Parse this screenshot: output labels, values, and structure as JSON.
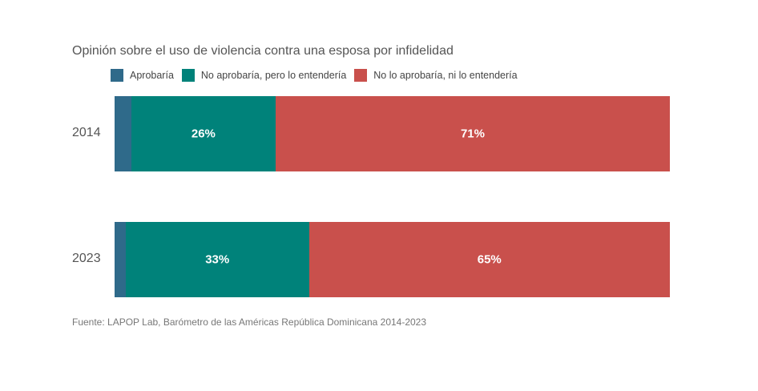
{
  "chart_data": {
    "type": "bar",
    "orientation": "horizontal",
    "stacked": true,
    "title": "Opinión sobre el uso de violencia contra una esposa por infidelidad",
    "categories": [
      "2014",
      "2023"
    ],
    "series": [
      {
        "name": "Aprobaría",
        "color": "#2f6a8a",
        "values": [
          3,
          2
        ],
        "labels": [
          "",
          ""
        ]
      },
      {
        "name": "No aprobaría, pero lo entendería",
        "color": "#00827a",
        "values": [
          26,
          33
        ],
        "labels": [
          "26%",
          "33%"
        ]
      },
      {
        "name": "No lo aprobaría, ni lo entendería",
        "color": "#c9504c",
        "values": [
          71,
          65
        ],
        "labels": [
          "71%",
          "65%"
        ]
      }
    ],
    "xlim": [
      0,
      100
    ],
    "legend_position": "top-left",
    "grid": false,
    "source": "Fuente: LAPOP Lab, Barómetro de las Américas República Dominicana 2014-2023"
  }
}
